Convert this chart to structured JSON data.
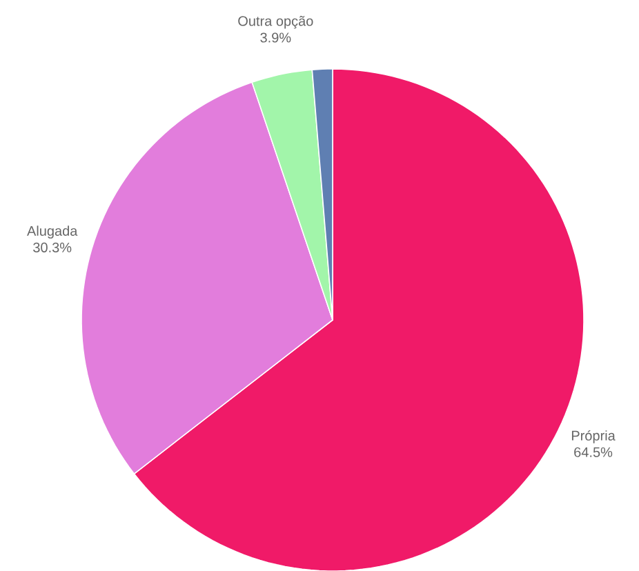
{
  "chart_data": {
    "type": "pie",
    "categories": [
      "Própria",
      "Alugada",
      "Outra opção",
      null
    ],
    "values": [
      64.5,
      30.3,
      3.9,
      1.3
    ],
    "value_labels": [
      "64.5%",
      "30.3%",
      "3.9%",
      null
    ],
    "colors": [
      "#f01a68",
      "#e27ddc",
      "#a2f5aa",
      "#5f7fb2"
    ]
  }
}
